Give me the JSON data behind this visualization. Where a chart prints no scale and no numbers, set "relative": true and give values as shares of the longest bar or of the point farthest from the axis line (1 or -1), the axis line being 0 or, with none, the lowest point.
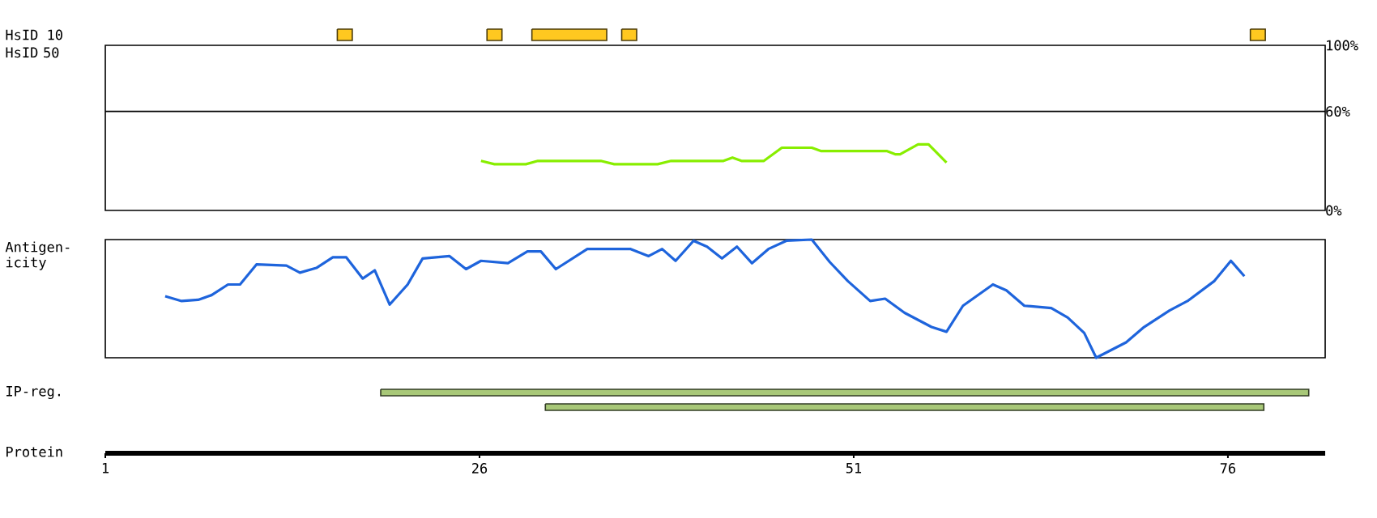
{
  "chart_data": [
    {
      "type": "line",
      "ylabel": "HsID 50",
      "xlim": [
        1,
        82.5
      ],
      "ylim": [
        0,
        100
      ],
      "yticks": [
        {
          "value": 0,
          "label": "0%"
        },
        {
          "value": 60,
          "label": "60%"
        },
        {
          "value": 100,
          "label": "100%"
        }
      ],
      "tick_labels": "y",
      "ref_lines": [
        {
          "axis": "y",
          "value": 60
        }
      ],
      "color": "#88ee00",
      "x": [
        26.1,
        27.0,
        29.1,
        29.9,
        34.1,
        35.0,
        37.9,
        38.8,
        42.3,
        42.9,
        43.5,
        45.0,
        46.2,
        48.2,
        48.8,
        53.2,
        53.8,
        54.1,
        55.3,
        56.0,
        57.2
      ],
      "values": [
        30,
        28,
        28,
        30,
        30,
        28,
        28,
        30,
        30,
        32,
        30,
        30,
        38,
        38,
        36,
        36,
        34,
        34,
        40,
        40,
        29
      ]
    },
    {
      "type": "line",
      "relative": true,
      "ylabel": "Antigen-icity",
      "xlim": [
        1,
        82.5
      ],
      "tick_labels": false,
      "color": "#1e64dc",
      "x": [
        5.0,
        6.1,
        7.2,
        8.1,
        9.2,
        10.0,
        11.1,
        13.1,
        14.0,
        15.1,
        16.2,
        17.1,
        18.2,
        19.0,
        20.0,
        21.2,
        22.2,
        24.0,
        25.1,
        26.1,
        27.9,
        29.2,
        30.1,
        31.1,
        33.2,
        36.1,
        37.3,
        38.2,
        39.1,
        40.3,
        41.2,
        42.2,
        43.2,
        44.2,
        45.3,
        46.5,
        48.2,
        49.4,
        50.6,
        52.1,
        53.1,
        54.4,
        56.2,
        57.2,
        58.3,
        60.3,
        61.2,
        62.4,
        64.2,
        65.3,
        66.4,
        67.2,
        69.2,
        70.4,
        72.1,
        73.3,
        75.1,
        76.2,
        77.1
      ],
      "values": [
        0.52,
        0.48,
        0.49,
        0.53,
        0.62,
        0.62,
        0.79,
        0.78,
        0.72,
        0.76,
        0.85,
        0.85,
        0.67,
        0.74,
        0.45,
        0.62,
        0.84,
        0.86,
        0.75,
        0.82,
        0.8,
        0.9,
        0.9,
        0.75,
        0.92,
        0.92,
        0.86,
        0.92,
        0.82,
        0.99,
        0.94,
        0.84,
        0.94,
        0.8,
        0.92,
        0.99,
        1,
        0.81,
        0.65,
        0.48,
        0.5,
        0.38,
        0.26,
        0.22,
        0.44,
        0.62,
        0.57,
        0.44,
        0.42,
        0.34,
        0.21,
        0,
        0.13,
        0.26,
        0.4,
        0.48,
        0.65,
        0.82,
        0.69
      ]
    },
    {
      "type": "bar",
      "orientation": "horizontal",
      "categories": [
        "HsID 10",
        "IP-reg."
      ],
      "xlabel": "Protein",
      "xlim": [
        1,
        82.5
      ],
      "xticks": [
        1,
        26,
        51,
        76
      ],
      "series": [
        {
          "color": "#ffc820",
          "base": [
            16.5,
            null
          ],
          "values": [
            1,
            null
          ]
        },
        {
          "color": "#ffc820",
          "base": [
            26.5,
            null
          ],
          "values": [
            1,
            null
          ]
        },
        {
          "color": "#ffc820",
          "base": [
            29.5,
            null
          ],
          "values": [
            5,
            null
          ]
        },
        {
          "color": "#ffc820",
          "base": [
            35.5,
            null
          ],
          "values": [
            1,
            null
          ]
        },
        {
          "color": "#ffc820",
          "base": [
            77.5,
            null
          ],
          "values": [
            1,
            null
          ]
        },
        {
          "color": "#a8c878",
          "base": [
            null,
            19.4
          ],
          "values": [
            null,
            62
          ]
        },
        {
          "color": "#a8c878",
          "base": [
            null,
            30.4
          ],
          "values": [
            null,
            48
          ]
        }
      ]
    }
  ]
}
